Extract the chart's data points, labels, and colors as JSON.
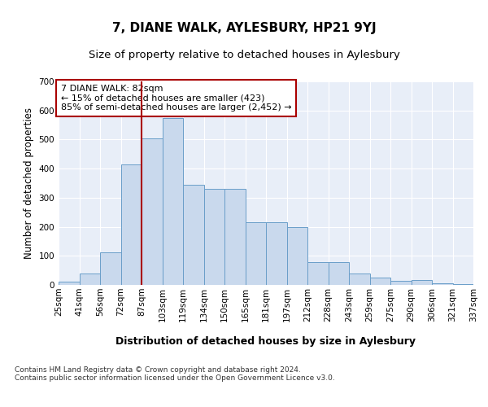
{
  "title": "7, DIANE WALK, AYLESBURY, HP21 9YJ",
  "subtitle": "Size of property relative to detached houses in Aylesbury",
  "xlabel": "Distribution of detached houses by size in Aylesbury",
  "ylabel": "Number of detached properties",
  "bar_values": [
    10,
    40,
    113,
    415,
    505,
    575,
    345,
    330,
    330,
    215,
    215,
    200,
    78,
    78,
    40,
    25,
    15,
    18,
    5,
    3
  ],
  "bar_labels": [
    "25sqm",
    "41sqm",
    "56sqm",
    "72sqm",
    "87sqm",
    "103sqm",
    "119sqm",
    "134sqm",
    "150sqm",
    "165sqm",
    "181sqm",
    "197sqm",
    "212sqm",
    "228sqm",
    "243sqm",
    "259sqm",
    "275sqm",
    "290sqm",
    "306sqm",
    "321sqm",
    "337sqm"
  ],
  "bar_color": "#c9d9ed",
  "bar_edge_color": "#6a9ec9",
  "vline_x": 4.0,
  "vline_color": "#aa0000",
  "annotation_box_text": "7 DIANE WALK: 82sqm\n← 15% of detached houses are smaller (423)\n85% of semi-detached houses are larger (2,452) →",
  "annotation_box_color": "#aa0000",
  "ylim": [
    0,
    700
  ],
  "yticks": [
    0,
    100,
    200,
    300,
    400,
    500,
    600,
    700
  ],
  "fig_bg_color": "#ffffff",
  "plot_bg_color": "#e8eef8",
  "footer_text": "Contains HM Land Registry data © Crown copyright and database right 2024.\nContains public sector information licensed under the Open Government Licence v3.0.",
  "grid_color": "#ffffff",
  "title_fontsize": 11,
  "subtitle_fontsize": 9.5,
  "ylabel_fontsize": 8.5,
  "xlabel_fontsize": 9,
  "tick_fontsize": 7.5,
  "annotation_fontsize": 8,
  "footer_fontsize": 6.5
}
